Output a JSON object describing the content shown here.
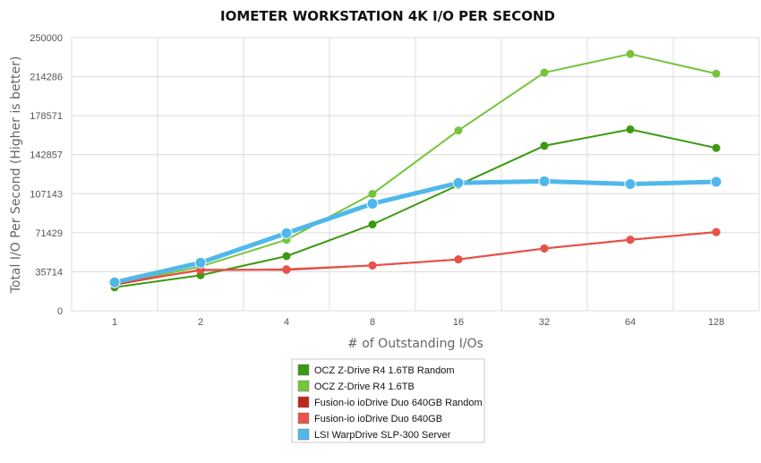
{
  "chart_data": {
    "type": "line",
    "title": "IOMETER WORKSTATION 4K I/O PER SECOND",
    "xlabel": "# of Outstanding I/Os",
    "ylabel": "Total I/O Per Second (Higher is better)",
    "categories": [
      "1",
      "2",
      "4",
      "8",
      "16",
      "32",
      "64",
      "128"
    ],
    "yticks": [
      "0",
      "35714",
      "71429",
      "107143",
      "142857",
      "178571",
      "214286",
      "250000"
    ],
    "ylim": [
      0,
      250000
    ],
    "grid": true,
    "legend_position": "bottom",
    "series": [
      {
        "name": "OCZ Z-Drive R4 1.6TB Random",
        "color": "#3c9a12",
        "values": [
          21500,
          32500,
          50000,
          79000,
          115000,
          151000,
          166000,
          149000
        ]
      },
      {
        "name": "OCZ Z-Drive R4 1.6TB",
        "color": "#76c43a",
        "values": [
          24000,
          40500,
          65000,
          107000,
          165000,
          218000,
          235000,
          217000
        ]
      },
      {
        "name": "Fusion-io ioDrive Duo 640GB Random",
        "color": "#c0261c",
        "values": [
          24000,
          37500,
          37500,
          41500,
          47000,
          57000,
          65000,
          72000
        ]
      },
      {
        "name": "Fusion-io ioDrive Duo 640GB",
        "color": "#e8524a",
        "values": [
          25000,
          37000,
          38000,
          41500,
          47000,
          57000,
          65000,
          72000
        ]
      },
      {
        "name": "LSI WarpDrive SLP-300 Server",
        "color": "#4fb8ea",
        "values": [
          26000,
          44000,
          71000,
          98000,
          117000,
          118500,
          116000,
          118000
        ]
      }
    ]
  }
}
